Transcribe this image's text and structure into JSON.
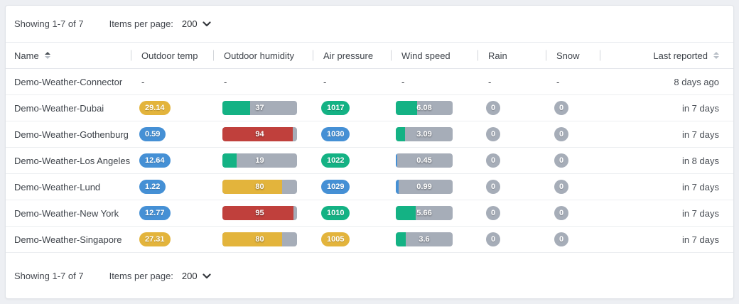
{
  "colors": {
    "yellow": "#E3B43C",
    "green": "#14B284",
    "blue": "#4590D5",
    "red": "#C0403C",
    "gray": "#A6ADB8"
  },
  "icons": {
    "items_per_page_chevron": "chevron-down",
    "name_sort": "sort-arrows-asc-active",
    "last_reported_sort": "sort-arrows-inactive"
  },
  "pagination": {
    "showing": "Showing 1-7 of 7",
    "items_per_page_label": "Items per page:",
    "items_per_page_value": "200"
  },
  "table": {
    "headers": {
      "name": "Name",
      "temp": "Outdoor temp",
      "humidity": "Outdoor humidity",
      "pressure": "Air pressure",
      "wind": "Wind speed",
      "rain": "Rain",
      "snow": "Snow",
      "last": "Last reported"
    },
    "rows": [
      {
        "name": "Demo-Weather-Connector",
        "temp": "-",
        "humidity": "-",
        "pressure": "-",
        "wind": "-",
        "rain": "-",
        "snow": "-",
        "last": "8 days ago"
      },
      {
        "name": "Demo-Weather-Dubai",
        "temp": {
          "value": "29.14",
          "color": "yellow"
        },
        "humidity": {
          "value": "37",
          "pct": 37,
          "color": "green"
        },
        "pressure": {
          "value": "1017",
          "color": "green"
        },
        "wind": {
          "value": "6.08",
          "pct": 38,
          "color": "green"
        },
        "rain": "0",
        "snow": "0",
        "last": "in 7 days"
      },
      {
        "name": "Demo-Weather-Gothenburg",
        "temp": {
          "value": "0.59",
          "color": "blue"
        },
        "humidity": {
          "value": "94",
          "pct": 94,
          "color": "red"
        },
        "pressure": {
          "value": "1030",
          "color": "blue"
        },
        "wind": {
          "value": "3.09",
          "pct": 16,
          "color": "green"
        },
        "rain": "0",
        "snow": "0",
        "last": "in 7 days"
      },
      {
        "name": "Demo-Weather-Los Angeles",
        "temp": {
          "value": "12.64",
          "color": "blue"
        },
        "humidity": {
          "value": "19",
          "pct": 19,
          "color": "green"
        },
        "pressure": {
          "value": "1022",
          "color": "green"
        },
        "wind": {
          "value": "0.45",
          "pct": 3,
          "color": "blue"
        },
        "rain": "0",
        "snow": "0",
        "last": "in 8 days"
      },
      {
        "name": "Demo-Weather-Lund",
        "temp": {
          "value": "1.22",
          "color": "blue"
        },
        "humidity": {
          "value": "80",
          "pct": 80,
          "color": "yellow"
        },
        "pressure": {
          "value": "1029",
          "color": "blue"
        },
        "wind": {
          "value": "0.99",
          "pct": 5,
          "color": "blue"
        },
        "rain": "0",
        "snow": "0",
        "last": "in 7 days"
      },
      {
        "name": "Demo-Weather-New York",
        "temp": {
          "value": "12.77",
          "color": "blue"
        },
        "humidity": {
          "value": "95",
          "pct": 95,
          "color": "red"
        },
        "pressure": {
          "value": "1010",
          "color": "green"
        },
        "wind": {
          "value": "5.66",
          "pct": 35,
          "color": "green"
        },
        "rain": "0",
        "snow": "0",
        "last": "in 7 days"
      },
      {
        "name": "Demo-Weather-Singapore",
        "temp": {
          "value": "27.31",
          "color": "yellow"
        },
        "humidity": {
          "value": "80",
          "pct": 80,
          "color": "yellow"
        },
        "pressure": {
          "value": "1005",
          "color": "yellow"
        },
        "wind": {
          "value": "3.6",
          "pct": 17,
          "color": "green"
        },
        "rain": "0",
        "snow": "0",
        "last": "in 7 days"
      }
    ]
  }
}
